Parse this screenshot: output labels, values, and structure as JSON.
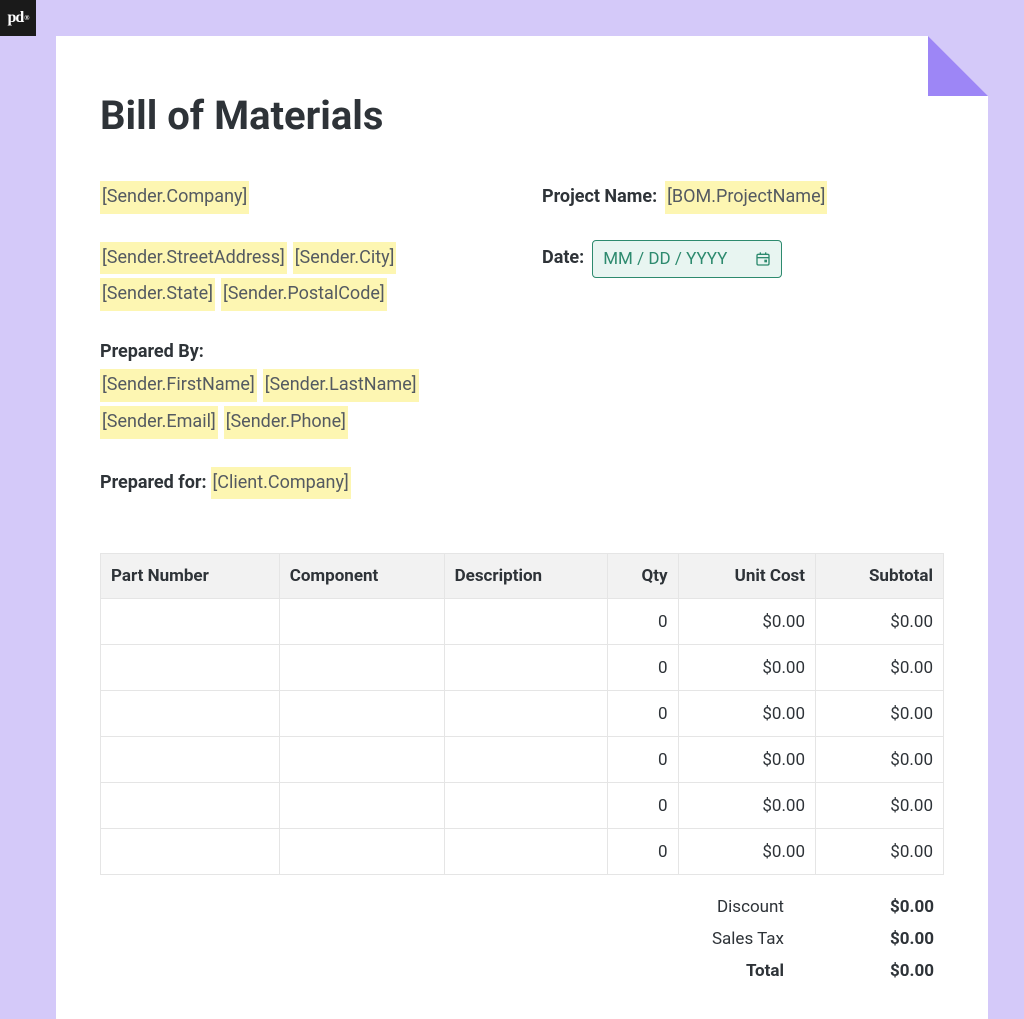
{
  "logo": {
    "text": "pd",
    "registered": "®"
  },
  "title": "Bill of Materials",
  "sender": {
    "company": "[Sender.Company]",
    "street": "[Sender.StreetAddress]",
    "city": "[Sender.City]",
    "state": "[Sender.State]",
    "postal": "[Sender.PostalCode]",
    "firstName": "[Sender.FirstName]",
    "lastName": "[Sender.LastName]",
    "email": "[Sender.Email]",
    "phone": "[Sender.Phone]"
  },
  "labels": {
    "preparedBy": "Prepared By:",
    "preparedFor": "Prepared for:",
    "projectName": "Project Name:",
    "date": "Date:"
  },
  "client": {
    "company": "[Client.Company]"
  },
  "project": {
    "nameToken": "[BOM.ProjectName]"
  },
  "date": {
    "placeholder": "MM / DD / YYYY"
  },
  "table": {
    "columns": [
      "Part Number",
      "Component",
      "Description",
      "Qty",
      "Unit Cost",
      "Subtotal"
    ],
    "columnAlign": [
      "left",
      "left",
      "left",
      "right",
      "right",
      "right"
    ],
    "rows": [
      {
        "part": "",
        "component": "",
        "description": "",
        "qty": "0",
        "unitCost": "$0.00",
        "subtotal": "$0.00"
      },
      {
        "part": "",
        "component": "",
        "description": "",
        "qty": "0",
        "unitCost": "$0.00",
        "subtotal": "$0.00"
      },
      {
        "part": "",
        "component": "",
        "description": "",
        "qty": "0",
        "unitCost": "$0.00",
        "subtotal": "$0.00"
      },
      {
        "part": "",
        "component": "",
        "description": "",
        "qty": "0",
        "unitCost": "$0.00",
        "subtotal": "$0.00"
      },
      {
        "part": "",
        "component": "",
        "description": "",
        "qty": "0",
        "unitCost": "$0.00",
        "subtotal": "$0.00"
      },
      {
        "part": "",
        "component": "",
        "description": "",
        "qty": "0",
        "unitCost": "$0.00",
        "subtotal": "$0.00"
      }
    ]
  },
  "totals": {
    "discountLabel": "Discount",
    "discountValue": "$0.00",
    "taxLabel": "Sales Tax",
    "taxValue": "$0.00",
    "totalLabel": "Total",
    "totalValue": "$0.00"
  },
  "colors": {
    "pageBg": "#d4c9f9",
    "cornerFold": "#9d86f6",
    "tokenBg": "#fdf6b2",
    "tokenText": "#545a61",
    "headerBg": "#f2f2f2",
    "border": "#e5e5e5",
    "text": "#2e3338",
    "dateBg": "#e8f5f1",
    "dateBorder": "#2d8a6e"
  }
}
